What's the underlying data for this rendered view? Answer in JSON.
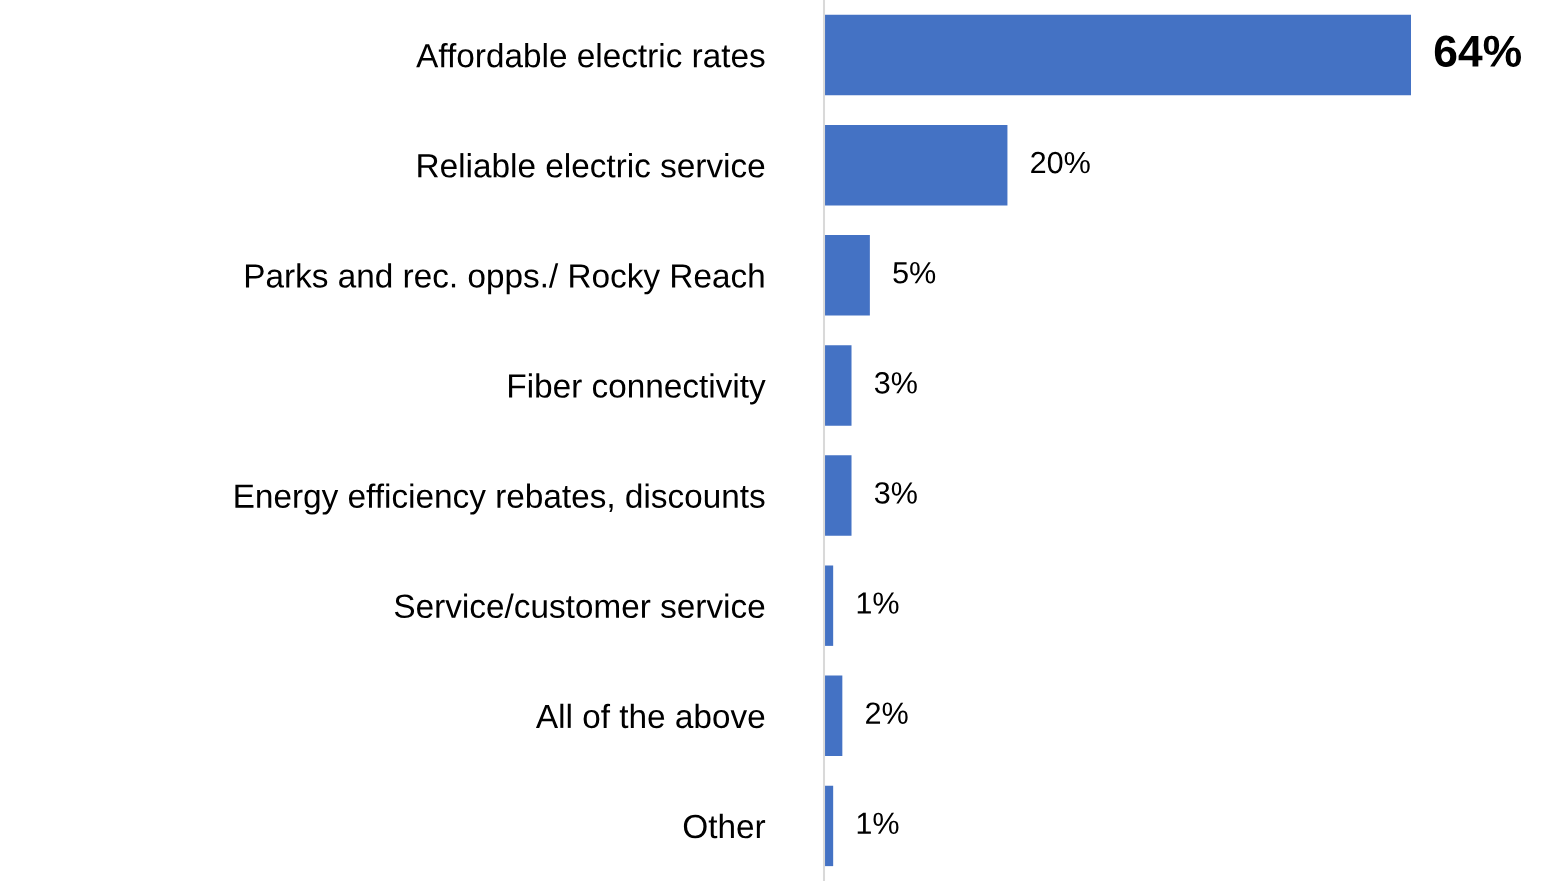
{
  "chart_data": {
    "type": "bar",
    "orientation": "horizontal",
    "categories": [
      "Affordable electric rates",
      "Reliable electric service",
      "Parks and rec. opps./ Rocky Reach",
      "Fiber connectivity",
      "Energy efficiency rebates, discounts",
      "Service/customer service",
      "All of the above",
      "Other"
    ],
    "values": [
      64,
      20,
      5,
      3,
      3,
      1,
      2,
      1
    ],
    "value_labels": [
      "64%",
      "20%",
      "5%",
      "3%",
      "3%",
      "1%",
      "2%",
      "1%"
    ],
    "color": "#4472c4",
    "grid": false,
    "legend": false
  }
}
